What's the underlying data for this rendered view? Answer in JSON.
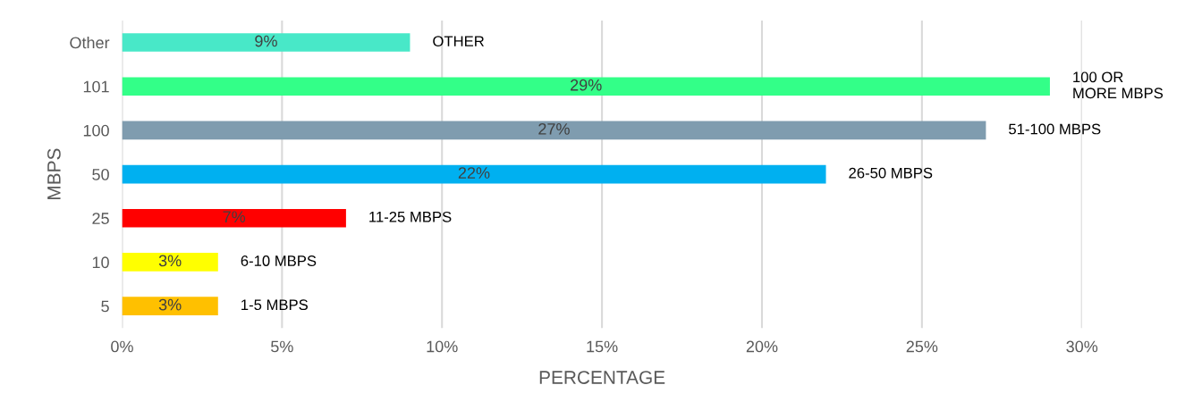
{
  "chart_data": {
    "type": "bar",
    "orientation": "horizontal",
    "ylabel": "MBPS",
    "xlabel": "PERCENTAGE",
    "categories": [
      "Other",
      "101",
      "100",
      "50",
      "25",
      "10",
      "5"
    ],
    "values": [
      9,
      29,
      27,
      22,
      7,
      3,
      3
    ],
    "colors": [
      "#48e8c8",
      "#33ff88",
      "#7f9caf",
      "#00b0f0",
      "#ff0000",
      "#ffff00",
      "#ffc000"
    ],
    "value_labels": [
      "9%",
      "29%",
      "27%",
      "22%",
      "7%",
      "3%",
      "3%"
    ],
    "xlim": [
      0,
      30
    ],
    "xticks": [
      {
        "value": 0,
        "label": "0%"
      },
      {
        "value": 5,
        "label": "5%"
      },
      {
        "value": 10,
        "label": "10%"
      },
      {
        "value": 15,
        "label": "15%"
      },
      {
        "value": 20,
        "label": "20%"
      },
      {
        "value": 25,
        "label": "25%"
      },
      {
        "value": 30,
        "label": "30%"
      }
    ],
    "grid": "x",
    "annotations": [
      {
        "text": "OTHER",
        "x": 9,
        "y": "Other"
      },
      {
        "text": "100 OR\nMORE MBPS",
        "x": 29,
        "y": "101"
      },
      {
        "text": "51-100 MBPS",
        "x": 27,
        "y": "100"
      },
      {
        "text": "26-50 MBPS",
        "x": 22,
        "y": "50"
      },
      {
        "text": "11-25 MBPS",
        "x": 7,
        "y": "25"
      },
      {
        "text": "6-10 MBPS",
        "x": 3,
        "y": "10"
      },
      {
        "text": "1-5 MBPS",
        "x": 3,
        "y": "5"
      }
    ]
  }
}
